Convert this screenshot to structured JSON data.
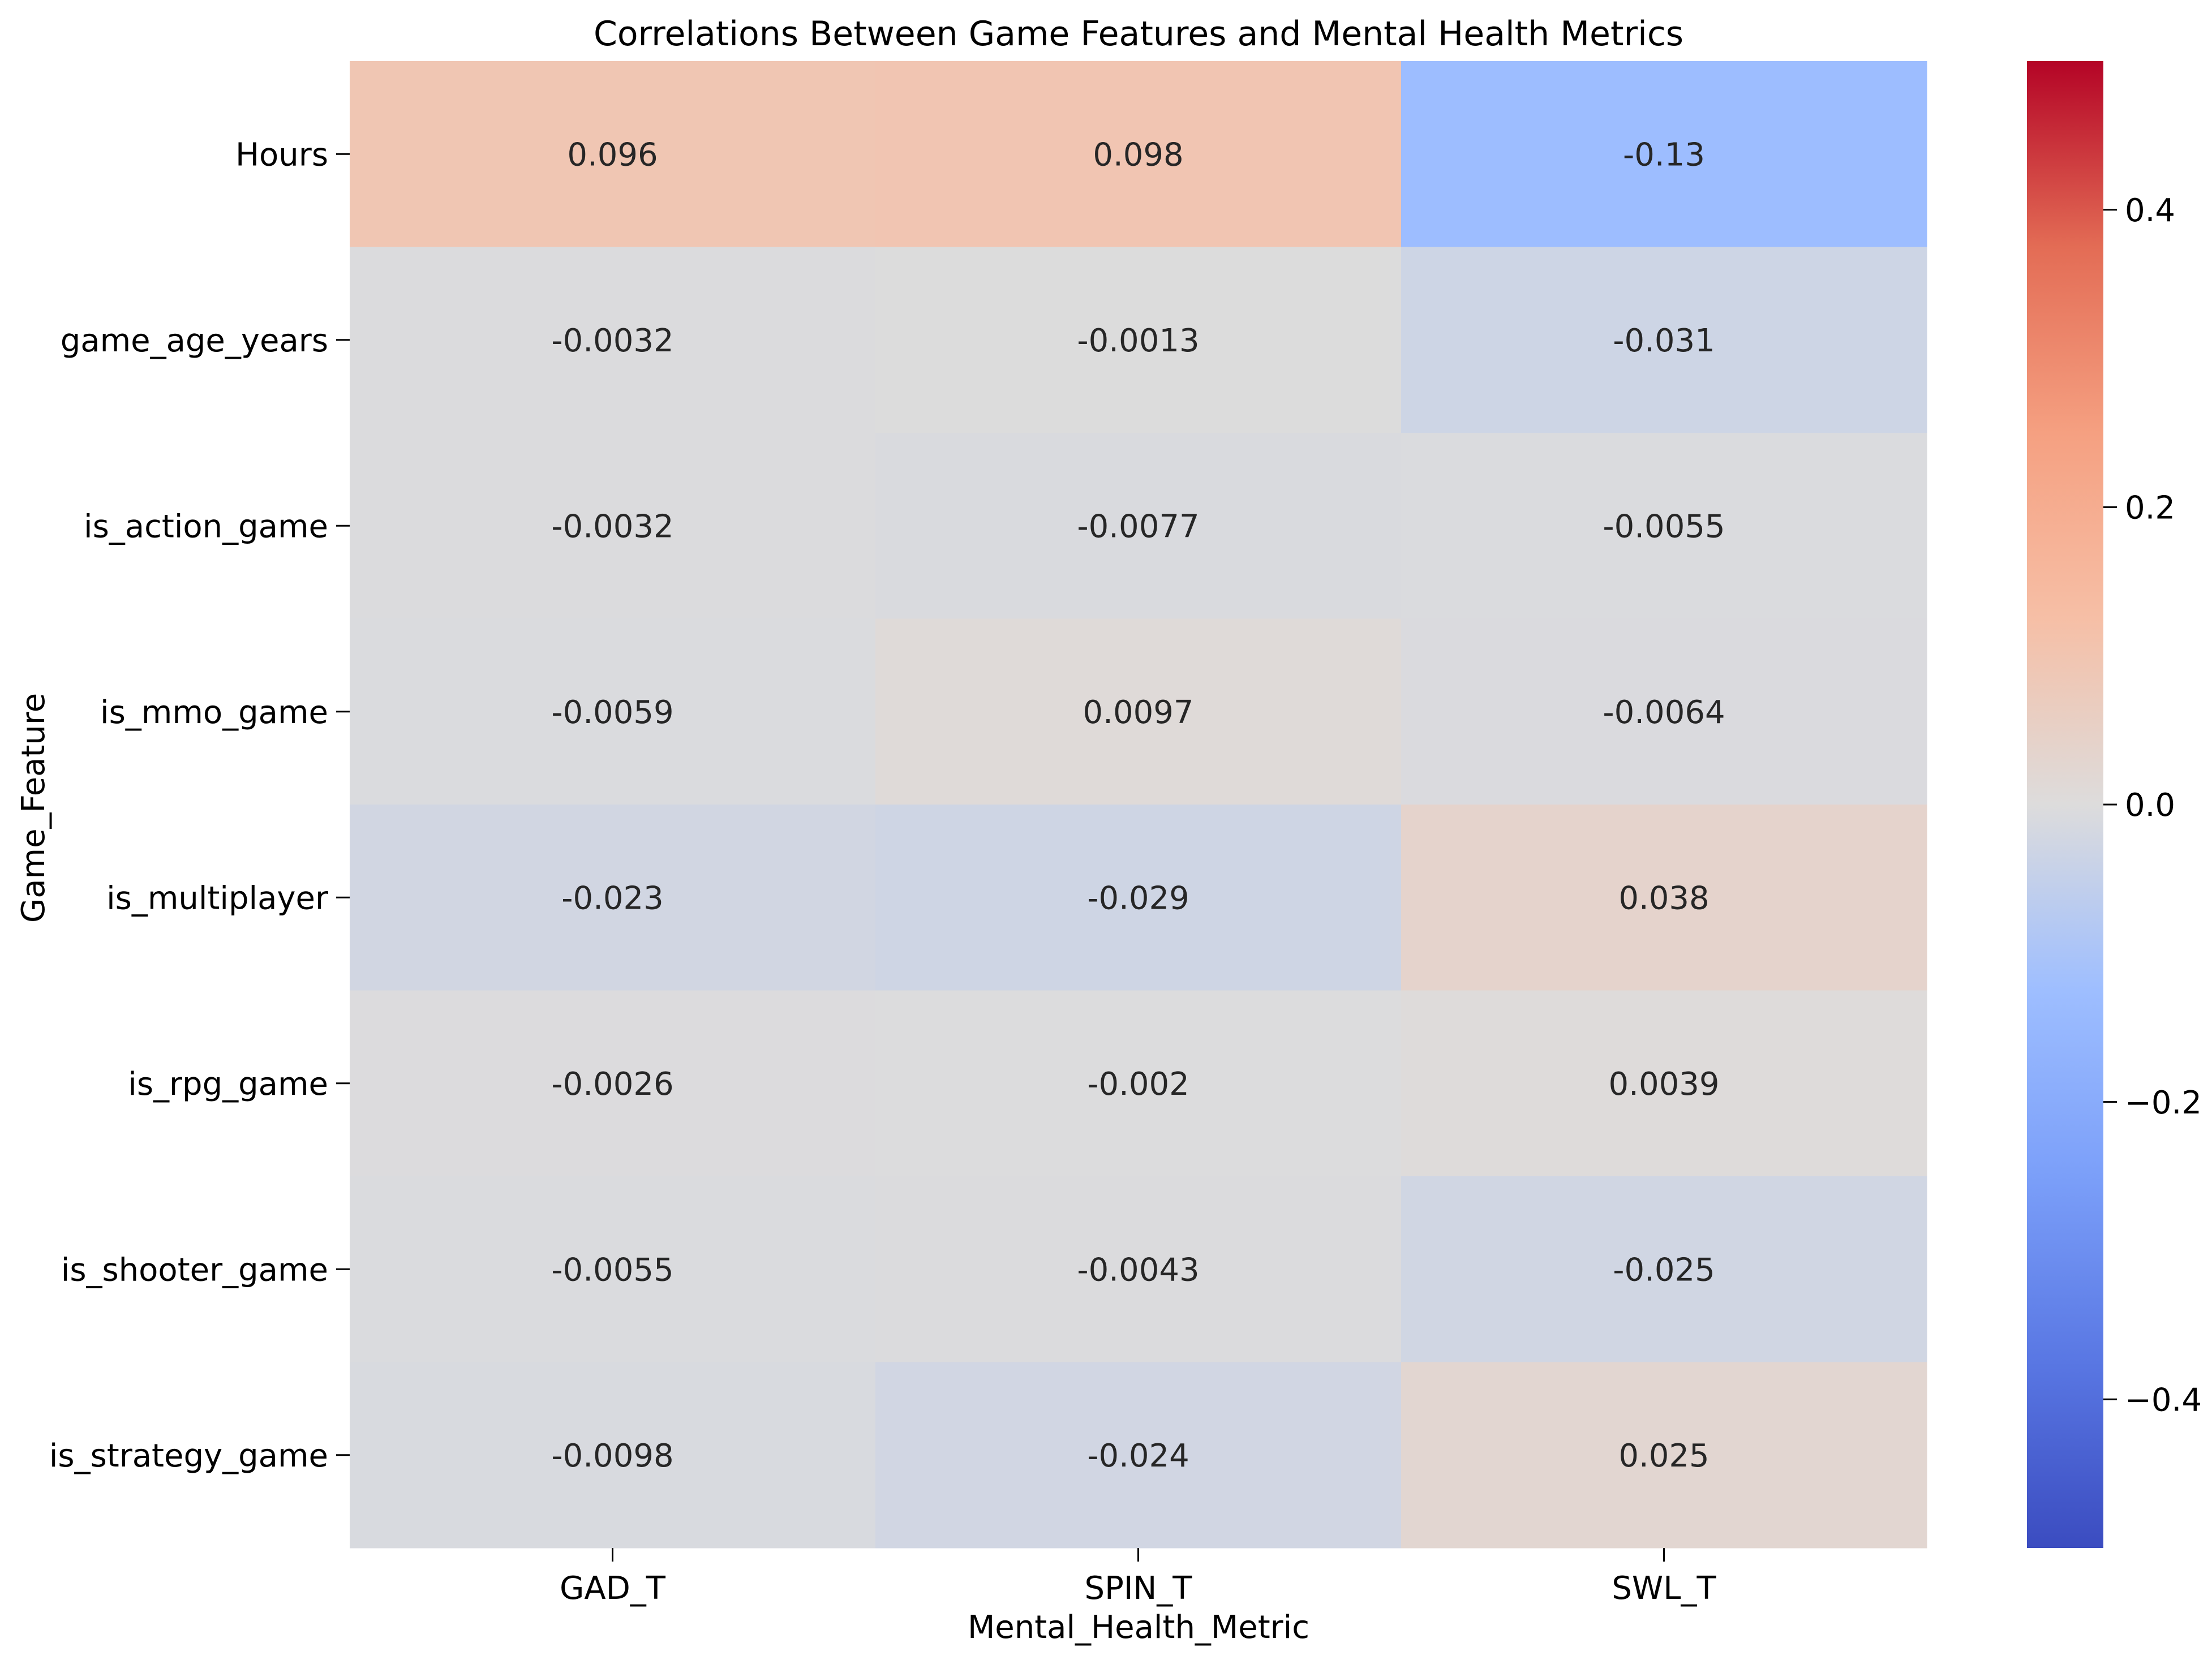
{
  "chart_data": {
    "type": "heatmap",
    "title": "Correlations Between Game Features and Mental Health Metrics",
    "xlabel": "Mental_Health_Metric",
    "ylabel": "Game_Feature",
    "columns": [
      "GAD_T",
      "SPIN_T",
      "SWL_T"
    ],
    "rows": [
      "Hours",
      "game_age_years",
      "is_action_game",
      "is_mmo_game",
      "is_multiplayer",
      "is_rpg_game",
      "is_shooter_game",
      "is_strategy_game"
    ],
    "values": [
      [
        0.096,
        0.098,
        -0.13
      ],
      [
        -0.0032,
        -0.0013,
        -0.031
      ],
      [
        -0.0032,
        -0.0077,
        -0.0055
      ],
      [
        -0.0059,
        0.0097,
        -0.0064
      ],
      [
        -0.023,
        -0.029,
        0.038
      ],
      [
        -0.0026,
        -0.002,
        0.0039
      ],
      [
        -0.0055,
        -0.0043,
        -0.025
      ],
      [
        -0.0098,
        -0.024,
        0.025
      ]
    ],
    "cell_labels": [
      [
        "0.096",
        "0.098",
        "-0.13"
      ],
      [
        "-0.0032",
        "-0.0013",
        "-0.031"
      ],
      [
        "-0.0032",
        "-0.0077",
        "-0.0055"
      ],
      [
        "-0.0059",
        "0.0097",
        "-0.0064"
      ],
      [
        "-0.023",
        "-0.029",
        "0.038"
      ],
      [
        "-0.0026",
        "-0.002",
        "0.0039"
      ],
      [
        "-0.0055",
        "-0.0043",
        "-0.025"
      ],
      [
        "-0.0098",
        "-0.024",
        "0.025"
      ]
    ],
    "colormap": "coolwarm",
    "vmin": -0.5,
    "vmax": 0.5,
    "colorbar_ticks": [
      0.4,
      0.2,
      0.0,
      -0.2,
      -0.4
    ],
    "colorbar_tick_labels": [
      "0.4",
      "0.2",
      "0.0",
      "−0.2",
      "−0.4"
    ]
  }
}
